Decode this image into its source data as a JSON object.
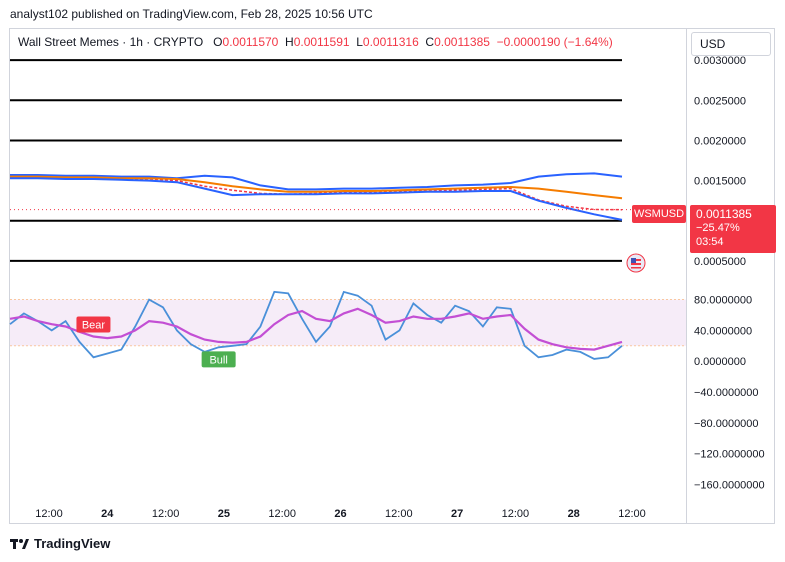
{
  "header": "analyst102 published on TradingView.com, Feb 28, 2025 10:56 UTC",
  "currency_button": "USD",
  "legend": {
    "symbol": "Wall Street Memes · 1h · CRYPTO",
    "open_label": "O",
    "open": "0.0011570",
    "high_label": "H",
    "high": "0.0011591",
    "low_label": "L",
    "low": "0.0011316",
    "close_label": "C",
    "close": "0.0011385",
    "change": "−0.0000190 (−1.64%)"
  },
  "price_tag": "WSMUSD",
  "last_price": {
    "price": "0.0011385",
    "pct": "−25.47%",
    "timer": "03:54"
  },
  "footer": "TradingView",
  "colors": {
    "bearish": "#f23645",
    "bullish": "#4caf50",
    "bands": "#2962ff",
    "basis": "#f57c00",
    "stoch_k": "#4a90d9",
    "stoch_d": "#c34fd4"
  },
  "chart_data": [
    {
      "type": "line",
      "panel": "price",
      "y_ticks": [
        "0.0030000",
        "0.0025000",
        "0.0020000",
        "0.0015000",
        "0.0005000"
      ],
      "ylim": [
        0.0002,
        0.0034
      ],
      "x_ticks": [
        "12:00",
        "24",
        "12:00",
        "25",
        "12:00",
        "26",
        "12:00",
        "27",
        "12:00",
        "28",
        "12:00"
      ],
      "horizontal_levels": [
        0.003,
        0.0025,
        0.002,
        0.001,
        0.0005
      ],
      "series": [
        {
          "role": "price",
          "values": [
            0.00154,
            0.00154,
            0.00153,
            0.00153,
            0.00152,
            0.00152,
            0.0015,
            0.00143,
            0.00138,
            0.00134,
            0.00133,
            0.00134,
            0.00136,
            0.00135,
            0.00136,
            0.00137,
            0.00138,
            0.00139,
            0.0014,
            0.00126,
            0.00118,
            0.00114,
            0.001138
          ]
        },
        {
          "role": "upper-band",
          "values": [
            0.00157,
            0.00157,
            0.00156,
            0.00156,
            0.00155,
            0.00155,
            0.00153,
            0.00156,
            0.00154,
            0.00144,
            0.00139,
            0.00139,
            0.0014,
            0.0014,
            0.00141,
            0.00142,
            0.00144,
            0.00145,
            0.00147,
            0.00155,
            0.00158,
            0.00159,
            0.00155
          ]
        },
        {
          "role": "basis",
          "values": [
            0.00155,
            0.00155,
            0.00154,
            0.00154,
            0.00153,
            0.00153,
            0.00152,
            0.00148,
            0.00143,
            0.00139,
            0.00136,
            0.00136,
            0.00137,
            0.00137,
            0.00138,
            0.00139,
            0.0014,
            0.00141,
            0.00142,
            0.0014,
            0.00136,
            0.00132,
            0.00128
          ]
        },
        {
          "role": "lower-band",
          "values": [
            0.00153,
            0.00153,
            0.00152,
            0.00152,
            0.00151,
            0.0015,
            0.00148,
            0.0014,
            0.00132,
            0.00133,
            0.00133,
            0.00133,
            0.00134,
            0.00134,
            0.00135,
            0.00136,
            0.00136,
            0.00137,
            0.00137,
            0.00125,
            0.00116,
            0.00108,
            0.00101
          ]
        }
      ]
    },
    {
      "type": "line",
      "panel": "oscillator",
      "y_ticks": [
        "80.0000000",
        "40.0000000",
        "0.0000000",
        "−40.0000000",
        "−80.0000000",
        "−120.0000000",
        "−160.0000000"
      ],
      "ylim": [
        -175,
        95
      ],
      "band": [
        80,
        20
      ],
      "series": [
        {
          "role": "k",
          "values": [
            48,
            62,
            52,
            40,
            52,
            25,
            5,
            10,
            15,
            45,
            80,
            70,
            40,
            22,
            12,
            18,
            20,
            22,
            45,
            90,
            88,
            55,
            25,
            45,
            90,
            85,
            72,
            28,
            40,
            75,
            60,
            50,
            72,
            65,
            45,
            70,
            68,
            20,
            5,
            8,
            15,
            12,
            3,
            5,
            20
          ]
        },
        {
          "role": "d",
          "values": [
            55,
            58,
            52,
            48,
            45,
            38,
            32,
            30,
            32,
            40,
            52,
            50,
            45,
            35,
            28,
            25,
            24,
            25,
            32,
            48,
            60,
            65,
            55,
            52,
            62,
            68,
            60,
            50,
            52,
            58,
            55,
            55,
            58,
            62,
            55,
            58,
            60,
            42,
            28,
            22,
            18,
            16,
            15,
            20,
            25
          ]
        }
      ],
      "annotations": [
        {
          "text": "Bear",
          "series": "d",
          "point": 6
        },
        {
          "text": "Bull",
          "series": "k",
          "point": 15
        }
      ]
    }
  ]
}
